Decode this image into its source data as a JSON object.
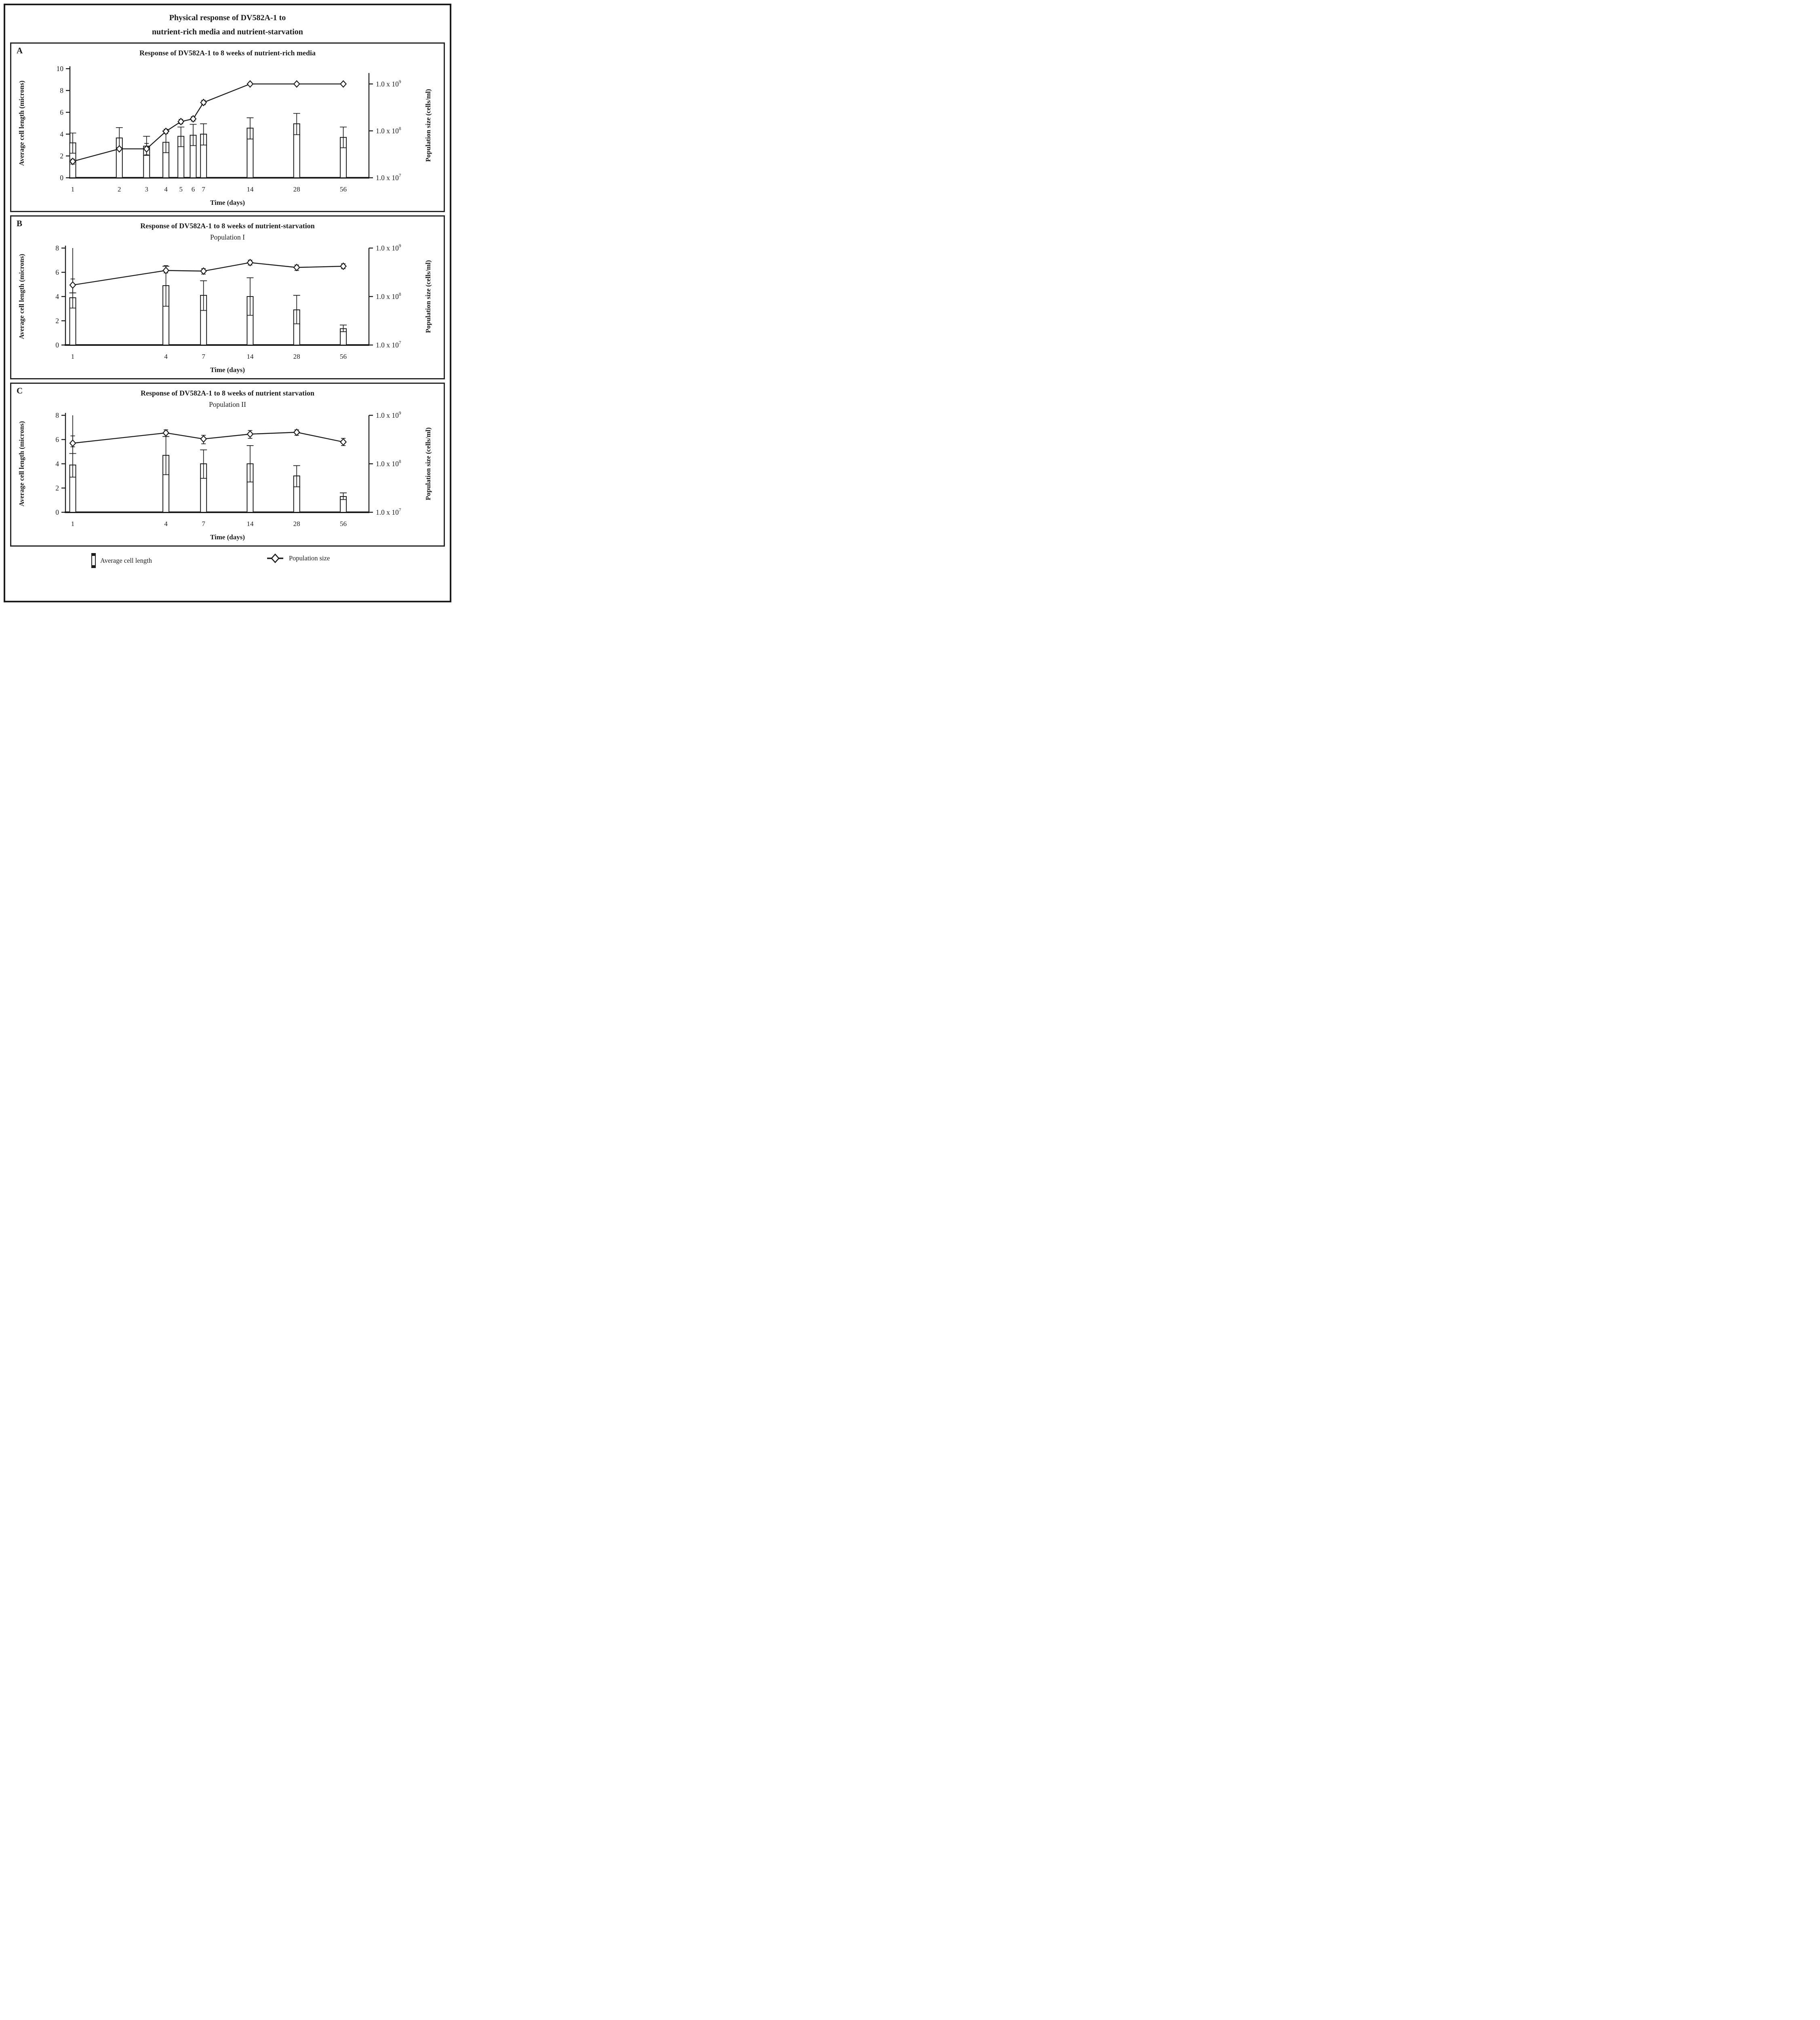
{
  "figure": {
    "title_line1": "Physical response of DV582A-1 to",
    "title_line2": "nutrient-rich media and nutrient-starvation"
  },
  "legend": {
    "bar_label": "Average cell length",
    "line_label": "Population size"
  },
  "colors": {
    "ink": "#1b1b1b",
    "paper": "#ffffff"
  },
  "chart_data": [
    {
      "type": "bar",
      "panel_label": "A",
      "title": "Response of DV582A-1 to 8 weeks of nutrient-rich media",
      "subtitle": "",
      "x_label": "Time (days)",
      "x_scale": "log10",
      "categories": [
        1,
        2,
        3,
        4,
        5,
        6,
        7,
        14,
        28,
        56
      ],
      "y_left": {
        "label": "Average cell length (microns)",
        "ticks": [
          0,
          2,
          4,
          6,
          8,
          10
        ],
        "max": 10
      },
      "y_right": {
        "label": "Population size (cells/ml)",
        "ticks": [
          {
            "base": "1.0 x 10",
            "exp": "9"
          },
          {
            "base": "1.0 x 10",
            "exp": "8"
          },
          {
            "base": "1.0 x 10",
            "exp": "7"
          }
        ],
        "base_exponent": 7,
        "units_per_decade": 4.3,
        "axis_top_units": 9.6
      },
      "series": [
        {
          "name": "Average cell length",
          "kind": "bar",
          "values": [
            3.2,
            3.65,
            2.9,
            3.25,
            3.8,
            3.9,
            4.0,
            4.55,
            4.95,
            3.7
          ],
          "err_lo": [
            2.25,
            2.75,
            2.05,
            2.3,
            2.85,
            2.95,
            3.0,
            3.55,
            3.95,
            2.75
          ],
          "err_hi": [
            4.1,
            4.6,
            3.8,
            4.3,
            4.65,
            4.9,
            4.95,
            5.5,
            5.9,
            4.65
          ],
          "whisker_extra_to": [
            null,
            null,
            null,
            null,
            null,
            null,
            null,
            null,
            null,
            null
          ]
        },
        {
          "name": "Population size",
          "kind": "line",
          "values_axis_units": [
            1.5,
            2.65,
            2.65,
            4.25,
            5.15,
            5.4,
            6.9,
            8.6,
            8.6,
            8.6
          ],
          "err_lo": [
            1.25,
            null,
            2.1,
            4.05,
            4.95,
            5.2,
            6.7,
            null,
            null,
            null
          ],
          "err_hi": [
            1.7,
            null,
            3.15,
            4.45,
            5.35,
            5.6,
            7.1,
            null,
            null,
            null
          ],
          "cells_per_ml_approx": [
            22000000.0,
            41000000.0,
            41000000.0,
            99000000.0,
            160000000.0,
            180000000.0,
            400000000.0,
            1000000000.0,
            1000000000.0,
            1000000000.0
          ]
        }
      ]
    },
    {
      "type": "bar",
      "panel_label": "B",
      "title": "Response of DV582A-1 to 8 weeks of nutrient-starvation",
      "subtitle": "Population I",
      "x_label": "Time (days)",
      "x_scale": "log10",
      "categories": [
        1,
        4,
        7,
        14,
        28,
        56
      ],
      "y_left": {
        "label": "Average cell length (microns)",
        "ticks": [
          0,
          2,
          4,
          6,
          8
        ],
        "max": 8
      },
      "y_right": {
        "label": "Population size (cells/ml)",
        "ticks": [
          {
            "base": "1.0 x 10",
            "exp": "9"
          },
          {
            "base": "1.0 x 10",
            "exp": "8"
          },
          {
            "base": "1.0 x 10",
            "exp": "7"
          }
        ],
        "base_exponent": 7,
        "units_per_decade": 4.0,
        "axis_top_units": 8.0
      },
      "series": [
        {
          "name": "Average cell length",
          "kind": "bar",
          "values": [
            3.9,
            4.9,
            4.1,
            4.0,
            2.9,
            1.35
          ],
          "err_lo": [
            3.05,
            3.2,
            2.85,
            2.45,
            1.75,
            1.1
          ],
          "err_hi": [
            4.3,
            6.5,
            5.3,
            5.55,
            4.1,
            1.65
          ],
          "whisker_extra_to": [
            8.0,
            null,
            null,
            null,
            null,
            null
          ]
        },
        {
          "name": "Population size",
          "kind": "line",
          "values_axis_units": [
            4.95,
            6.15,
            6.1,
            6.8,
            6.4,
            6.5
          ],
          "err_lo": [
            4.3,
            5.95,
            5.85,
            6.6,
            6.15,
            6.3
          ],
          "err_hi": [
            5.45,
            6.55,
            6.3,
            7.0,
            6.6,
            6.7
          ],
          "cells_per_ml_approx": [
            170000000.0,
            340000000.0,
            330000000.0,
            500000000.0,
            400000000.0,
            420000000.0
          ]
        }
      ]
    },
    {
      "type": "bar",
      "panel_label": "C",
      "title": "Response of DV582A-1 to 8 weeks of nutrient starvation",
      "subtitle": "Population II",
      "x_label": "Time (days)",
      "x_scale": "log10",
      "categories": [
        1,
        4,
        7,
        14,
        28,
        56
      ],
      "y_left": {
        "label": "Average cell length (microns)",
        "ticks": [
          0,
          2,
          4,
          6,
          8
        ],
        "max": 8
      },
      "y_right": {
        "label": "Population size (cells/ml)",
        "ticks": [
          {
            "base": "1.0 x 10",
            "exp": "9"
          },
          {
            "base": "1.0 x 10",
            "exp": "8"
          },
          {
            "base": "1.0 x 10",
            "exp": "7"
          }
        ],
        "base_exponent": 7,
        "units_per_decade": 4.0,
        "axis_top_units": 8.0
      },
      "series": [
        {
          "name": "Average cell length",
          "kind": "bar",
          "values": [
            3.9,
            4.7,
            4.0,
            4.0,
            3.0,
            1.3
          ],
          "err_lo": [
            2.9,
            3.1,
            2.8,
            2.5,
            2.1,
            1.05
          ],
          "err_hi": [
            4.85,
            6.25,
            5.15,
            5.5,
            3.85,
            1.6
          ],
          "whisker_extra_to": [
            8.0,
            null,
            null,
            null,
            null,
            null
          ]
        },
        {
          "name": "Population size",
          "kind": "line",
          "values_axis_units": [
            5.7,
            6.55,
            6.05,
            6.45,
            6.6,
            5.8
          ],
          "err_lo": [
            5.4,
            6.25,
            5.65,
            6.1,
            6.35,
            5.5
          ],
          "err_hi": [
            6.3,
            6.8,
            6.35,
            6.75,
            6.8,
            6.1
          ],
          "cells_per_ml_approx": [
            270000000.0,
            440000000.0,
            330000000.0,
            410000000.0,
            450000000.0,
            280000000.0
          ]
        }
      ]
    }
  ]
}
